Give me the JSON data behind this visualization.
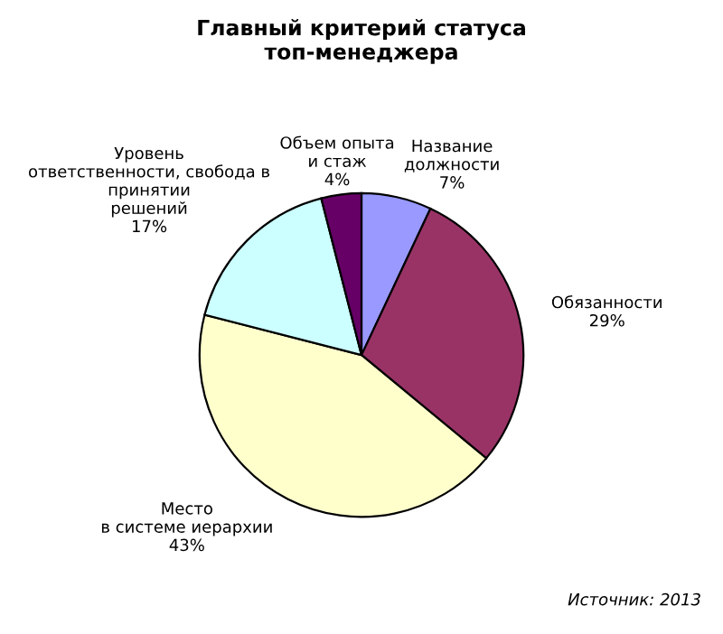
{
  "chart_data": {
    "type": "pie",
    "title": "Главный критерий статуса\nтоп-менеджера",
    "categories": [
      "Название\nдолжности",
      "Обязанности",
      "Место\nв системе иерархии",
      "Уровень\nответственности, свобода в\nпринятии\nрешений",
      "Объем опыта\nи стаж"
    ],
    "values": [
      7,
      29,
      43,
      17,
      4
    ],
    "colors": [
      "#9999ff",
      "#993366",
      "#ffffcc",
      "#ccffff",
      "#660066"
    ],
    "value_labels": [
      "7%",
      "29%",
      "43%",
      "17%",
      "4%"
    ],
    "annotations": [
      "Источник: 2013"
    ]
  }
}
